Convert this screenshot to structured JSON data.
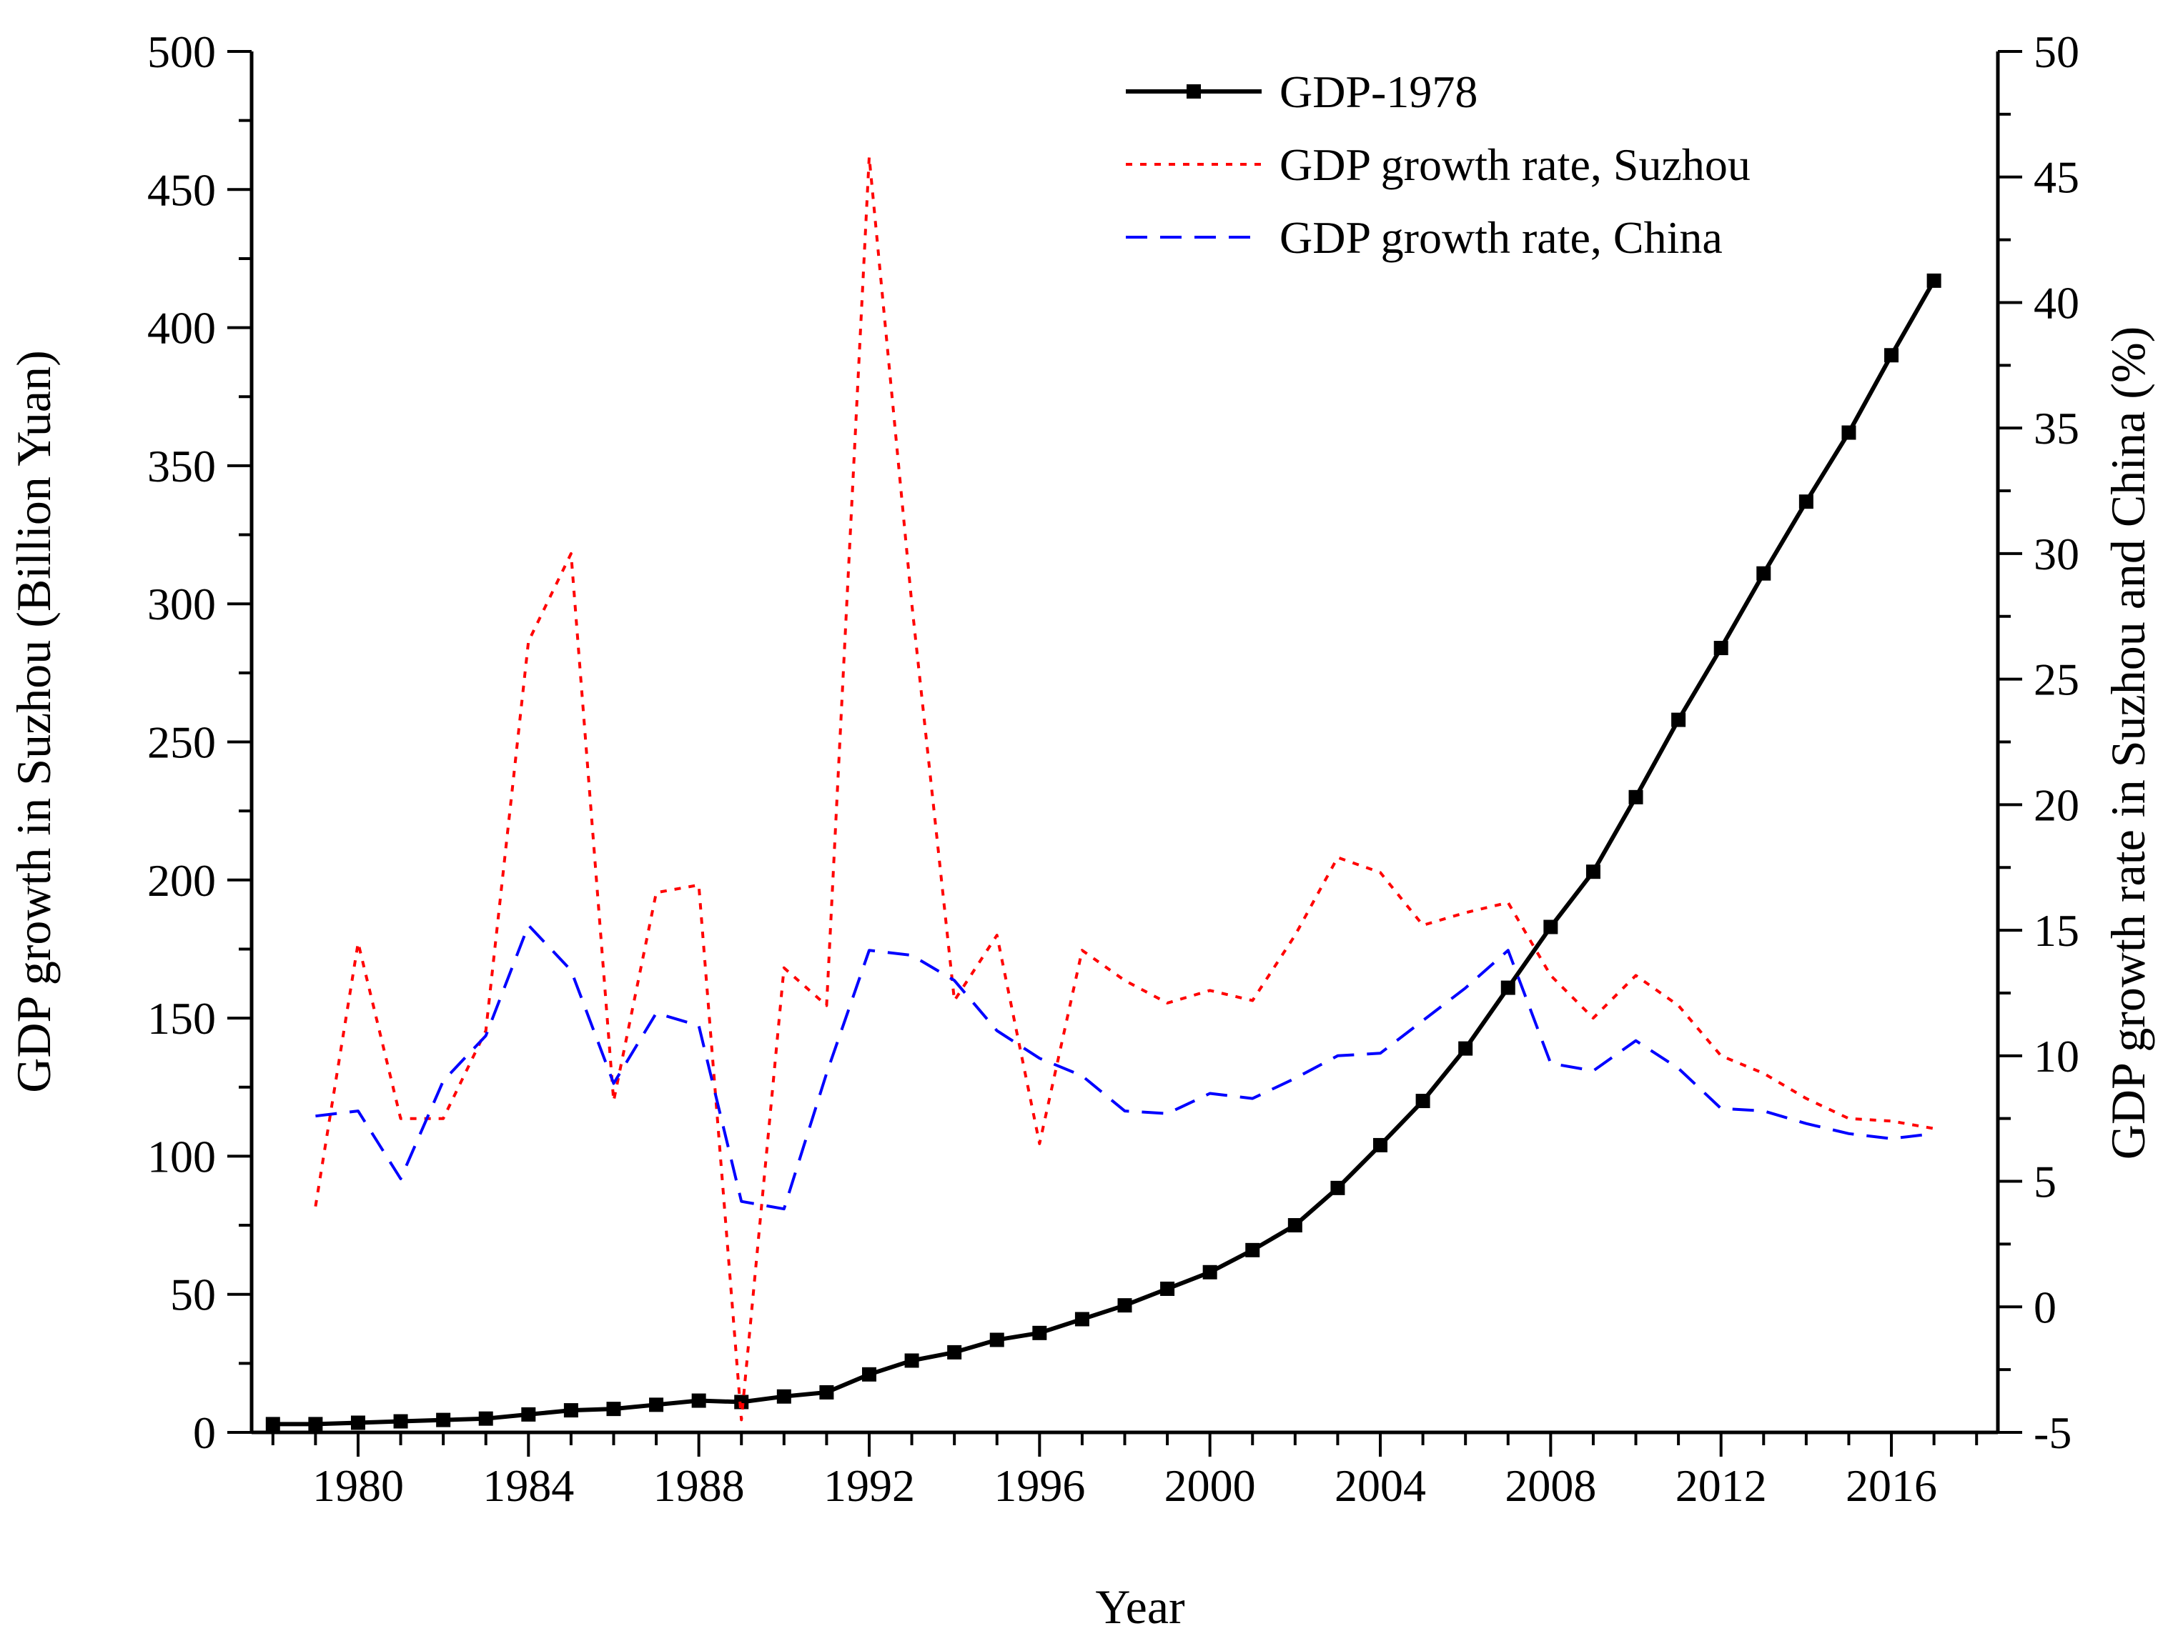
{
  "chart_data": {
    "type": "line",
    "xlabel": "Year",
    "ylabel_left": "GDP growth in Suzhou (Billion Yuan)",
    "ylabel_right": "GDP growth rate in Suzhou and China (%)",
    "xlim": [
      1977.5,
      2018.5
    ],
    "ylim_left": [
      0,
      500
    ],
    "ylim_right": [
      -5,
      50
    ],
    "x_ticks": [
      1980,
      1984,
      1988,
      1992,
      1996,
      2000,
      2004,
      2008,
      2012,
      2016
    ],
    "y_ticks_left": [
      0,
      50,
      100,
      150,
      200,
      250,
      300,
      350,
      400,
      450,
      500
    ],
    "y_ticks_right": [
      -5,
      0,
      5,
      10,
      15,
      20,
      25,
      30,
      35,
      40,
      45,
      50
    ],
    "grid": false,
    "legend_position": "top-right",
    "colors": {
      "gdp": "#000000",
      "suzhou": "#ff0000",
      "china": "#0000ff"
    },
    "series": [
      {
        "name": "GDP-1978",
        "axis": "left",
        "style": "solid-square-markers",
        "x": [
          1978,
          1979,
          1980,
          1981,
          1982,
          1983,
          1984,
          1985,
          1986,
          1987,
          1988,
          1989,
          1990,
          1991,
          1992,
          1993,
          1994,
          1995,
          1996,
          1997,
          1998,
          1999,
          2000,
          2001,
          2002,
          2003,
          2004,
          2005,
          2006,
          2007,
          2008,
          2009,
          2010,
          2011,
          2012,
          2013,
          2014,
          2015,
          2016,
          2017
        ],
        "values": [
          3,
          3,
          3.5,
          4,
          4.5,
          5,
          6.5,
          8,
          8.5,
          10,
          11.5,
          11,
          13,
          14.5,
          21,
          26,
          29,
          33.5,
          36,
          41,
          46,
          52,
          58,
          66,
          75,
          88.5,
          104,
          120,
          139,
          161,
          183,
          203,
          230,
          258,
          284,
          311,
          337,
          362,
          390,
          417
        ]
      },
      {
        "name": "GDP growth rate, Suzhou",
        "axis": "right",
        "style": "dotted",
        "x": [
          1979,
          1980,
          1981,
          1982,
          1983,
          1984,
          1985,
          1986,
          1987,
          1988,
          1989,
          1990,
          1991,
          1992,
          1993,
          1994,
          1995,
          1996,
          1997,
          1998,
          1999,
          2000,
          2001,
          2002,
          2003,
          2004,
          2005,
          2006,
          2007,
          2008,
          2009,
          2010,
          2011,
          2012,
          2013,
          2014,
          2015,
          2016,
          2017
        ],
        "values": [
          4.0,
          14.5,
          7.5,
          7.5,
          11.0,
          26.5,
          30.0,
          8.2,
          16.5,
          16.8,
          -4.5,
          13.5,
          12.0,
          45.8,
          28.0,
          12.2,
          14.8,
          6.5,
          14.2,
          13.0,
          12.1,
          12.6,
          12.2,
          14.8,
          17.9,
          17.3,
          15.2,
          15.7,
          16.1,
          13.2,
          11.5,
          13.2,
          12.0,
          10.0,
          9.3,
          8.3,
          7.5,
          7.4,
          7.1
        ]
      },
      {
        "name": "GDP growth rate, China",
        "axis": "right",
        "style": "dashed",
        "x": [
          1979,
          1980,
          1981,
          1982,
          1983,
          1984,
          1985,
          1986,
          1987,
          1988,
          1989,
          1990,
          1991,
          1992,
          1993,
          1994,
          1995,
          1996,
          1997,
          1998,
          1999,
          2000,
          2001,
          2002,
          2003,
          2004,
          2005,
          2006,
          2007,
          2008,
          2009,
          2010,
          2011,
          2012,
          2013,
          2014,
          2015,
          2016,
          2017
        ],
        "values": [
          7.6,
          7.8,
          5.1,
          9.0,
          10.8,
          15.2,
          13.4,
          8.9,
          11.7,
          11.2,
          4.2,
          3.9,
          9.3,
          14.2,
          14.0,
          13.0,
          11.0,
          9.9,
          9.2,
          7.8,
          7.7,
          8.5,
          8.3,
          9.1,
          10.0,
          10.1,
          11.4,
          12.7,
          14.2,
          9.7,
          9.4,
          10.6,
          9.5,
          7.9,
          7.8,
          7.3,
          6.9,
          6.7,
          6.9
        ]
      }
    ]
  }
}
